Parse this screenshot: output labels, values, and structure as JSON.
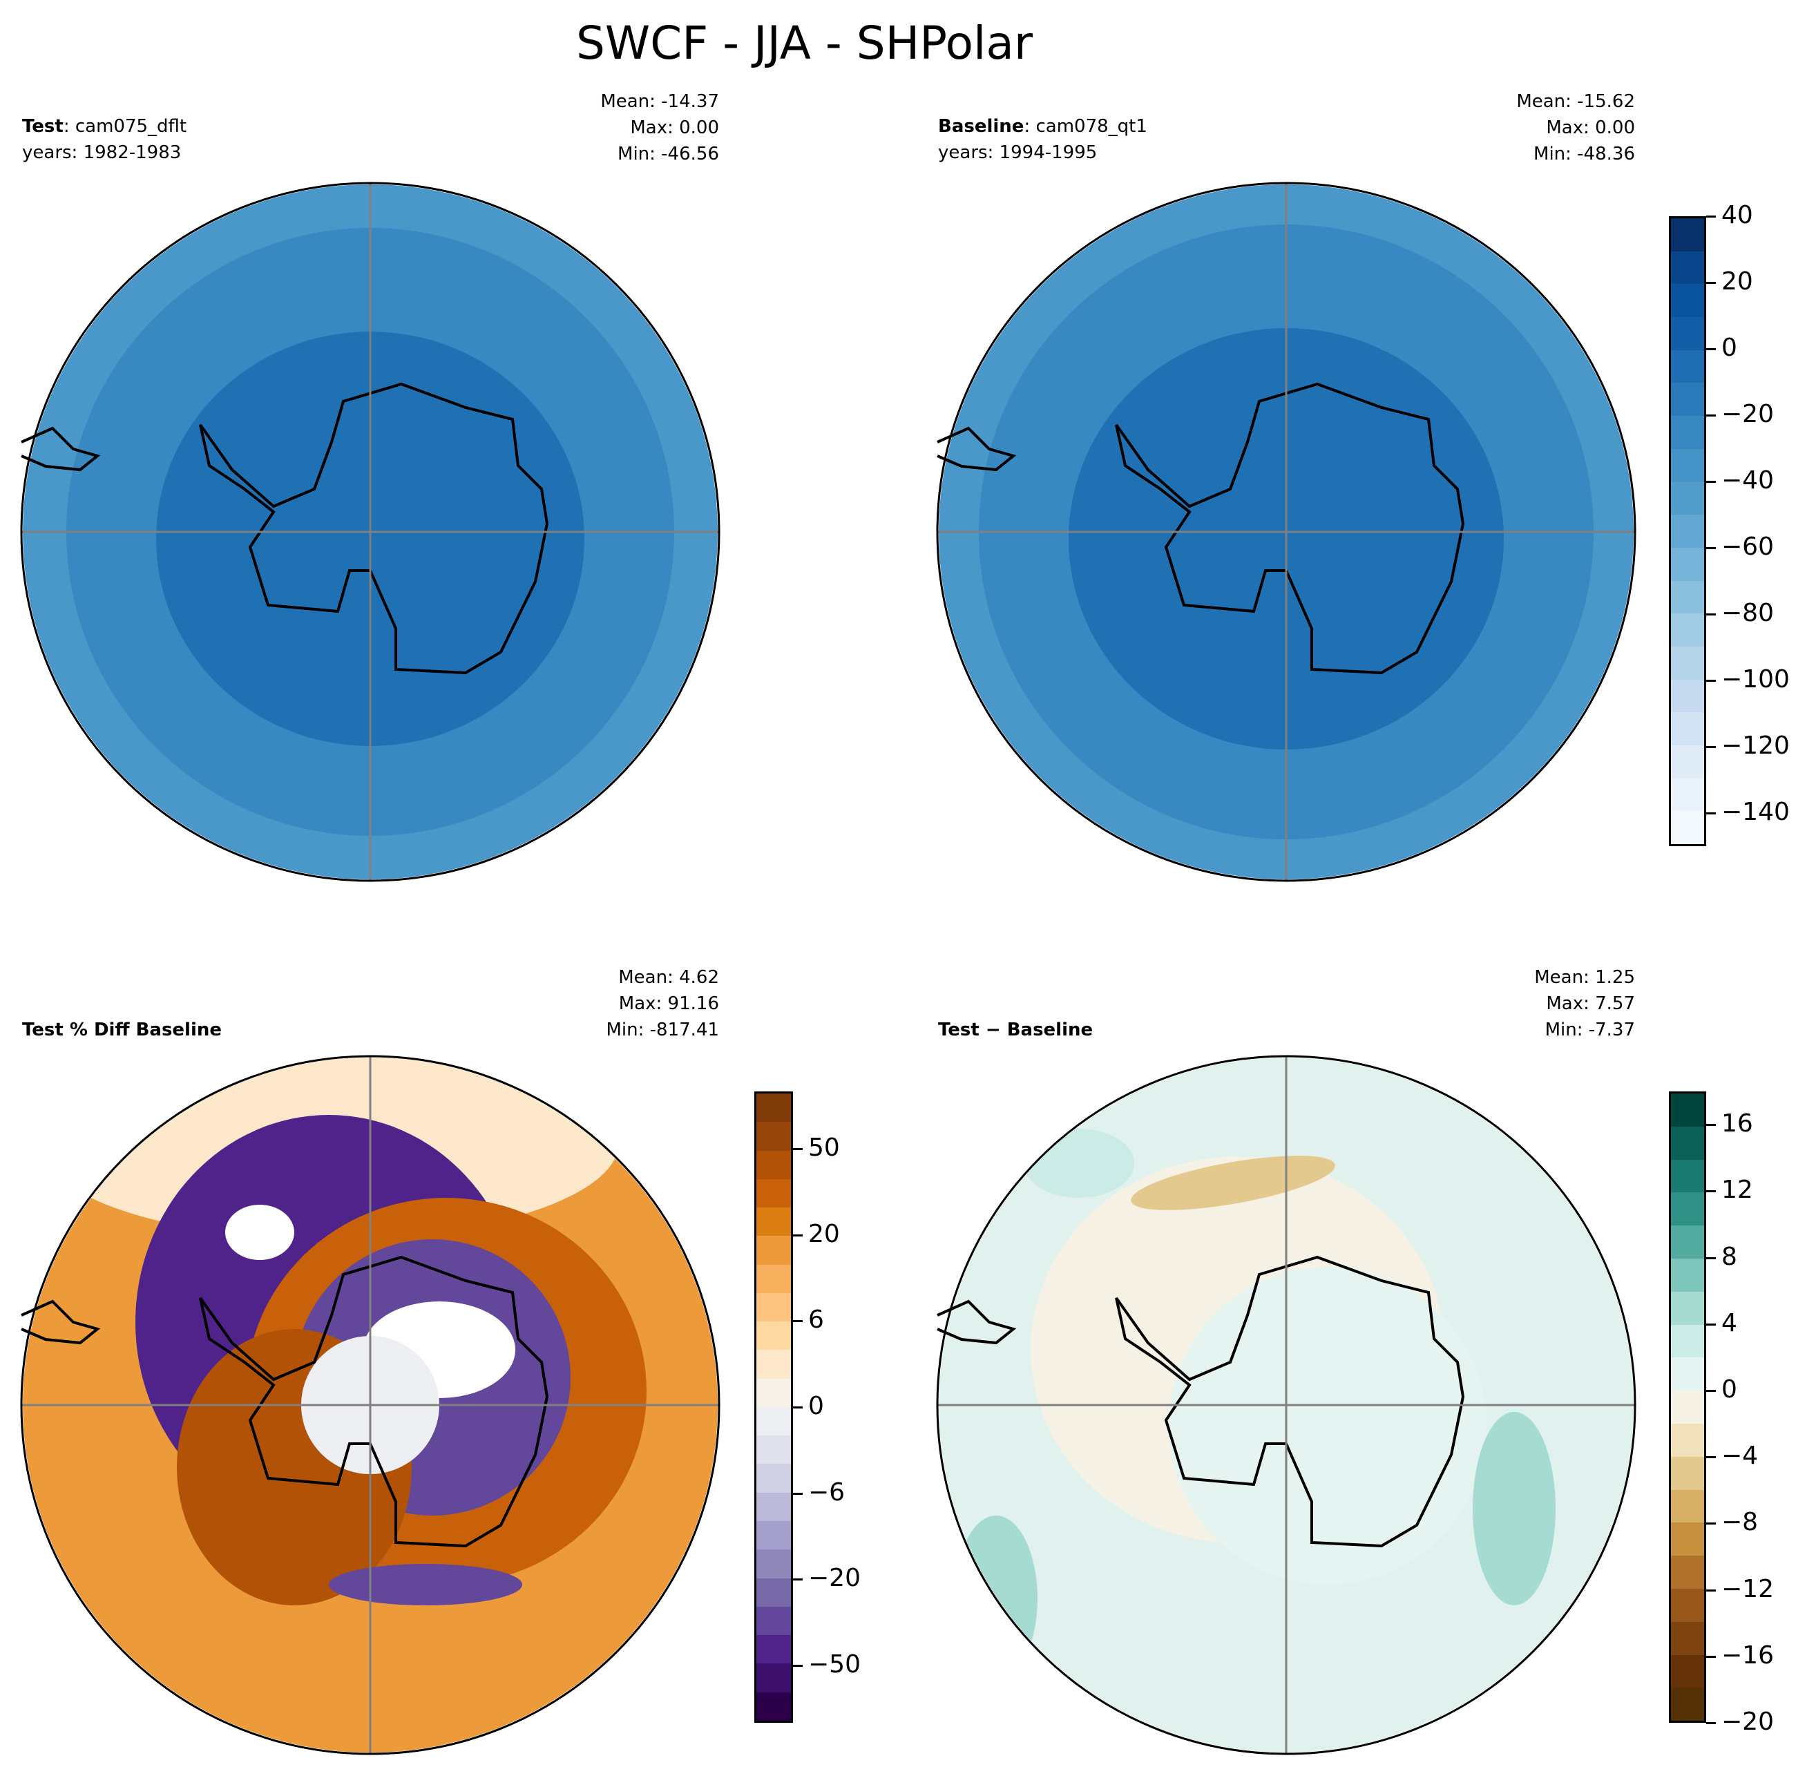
{
  "title": "SWCF - JJA - SHPolar",
  "panels": [
    {
      "label_bold": "Test",
      "label_rest": ": cam075_dflt",
      "years": "years: 1982-1983",
      "mean": "Mean: -14.37",
      "max": "Max:  0.00",
      "min": "Min: -46.56"
    },
    {
      "label_bold": "Baseline",
      "label_rest": ": cam078_qt1",
      "years": "years: 1994-1995",
      "mean": "Mean: -15.62",
      "max": "Max:  0.00",
      "min": "Min: -48.36"
    },
    {
      "label_bold": "Test % Diff Baseline",
      "label_rest": "",
      "years": "",
      "mean": "Mean:  4.62",
      "max": "Max: 91.16",
      "min": "Min: -817.41"
    },
    {
      "label_bold": "Test − Baseline",
      "label_rest": "",
      "years": "",
      "mean": "Mean:  1.25",
      "max": "Max:  7.57",
      "min": "Min: -7.37"
    }
  ],
  "chart_data": [
    {
      "type": "heatmap",
      "title": "Test: cam075_dflt",
      "projection": "south-polar-stereo",
      "mean": -14.37,
      "max": 0.0,
      "min": -46.56
    },
    {
      "type": "heatmap",
      "title": "Baseline: cam078_qt1",
      "projection": "south-polar-stereo",
      "mean": -15.62,
      "max": 0.0,
      "min": -48.36
    },
    {
      "type": "heatmap",
      "title": "Test % Diff Baseline",
      "projection": "south-polar-stereo",
      "mean": 4.62,
      "max": 91.16,
      "min": -817.41
    },
    {
      "type": "heatmap",
      "title": "Test - Baseline",
      "projection": "south-polar-stereo",
      "mean": 1.25,
      "max": 7.57,
      "min": -7.37
    }
  ],
  "colorbars": {
    "main": {
      "range": [
        -150,
        40
      ],
      "ticks": [
        "40",
        "20",
        "0",
        "−20",
        "−40",
        "−60",
        "−80",
        "−100",
        "−120",
        "−140"
      ],
      "tick_values": [
        40,
        20,
        0,
        -20,
        -40,
        -60,
        -80,
        -100,
        -120,
        -140
      ],
      "colors": [
        "#08306b",
        "#08458a",
        "#0a539e",
        "#135fa7",
        "#1f6eb3",
        "#2a7ab9",
        "#3787c0",
        "#4494c7",
        "#539dcc",
        "#62a8d3",
        "#76b4d9",
        "#8bc0dd",
        "#a0cbe2",
        "#b4d4e9",
        "#c6dbef",
        "#d2e3f3",
        "#dfebf7",
        "#eaf2fb",
        "#f4f9fe"
      ]
    },
    "pctdiff": {
      "ticks": [
        "50",
        "20",
        "6",
        "0",
        "−6",
        "−20",
        "−50"
      ],
      "colors": [
        "#7f3b08",
        "#964608",
        "#b15207",
        "#c8610a",
        "#dd7e13",
        "#ec9a3a",
        "#f7b15e",
        "#fdc47f",
        "#fed9a2",
        "#fee8cb",
        "#f8f1e8",
        "#eeeff3",
        "#e1e1ee",
        "#d0d1e5",
        "#bcb8d9",
        "#a59fcb",
        "#8f86ba",
        "#7768a8",
        "#62479a",
        "#4f2389",
        "#3c106a",
        "#2d004b"
      ]
    },
    "diff": {
      "range": [
        -20,
        18
      ],
      "ticks": [
        "16",
        "12",
        "8",
        "4",
        "0",
        "−4",
        "−8",
        "−12",
        "−16",
        "−20"
      ],
      "tick_values": [
        16,
        12,
        8,
        4,
        0,
        -4,
        -8,
        -12,
        -16,
        -20
      ],
      "colors": [
        "#00463c",
        "#0a5f56",
        "#1b7a70",
        "#2f9186",
        "#53aa9f",
        "#7ec6bb",
        "#a6dbd2",
        "#cbebe6",
        "#e5f3f1",
        "#f5f1e4",
        "#f0e1bc",
        "#e4c98e",
        "#d6af64",
        "#c68f3e",
        "#b0722a",
        "#97571a",
        "#7d440f",
        "#663308",
        "#543005"
      ]
    }
  }
}
